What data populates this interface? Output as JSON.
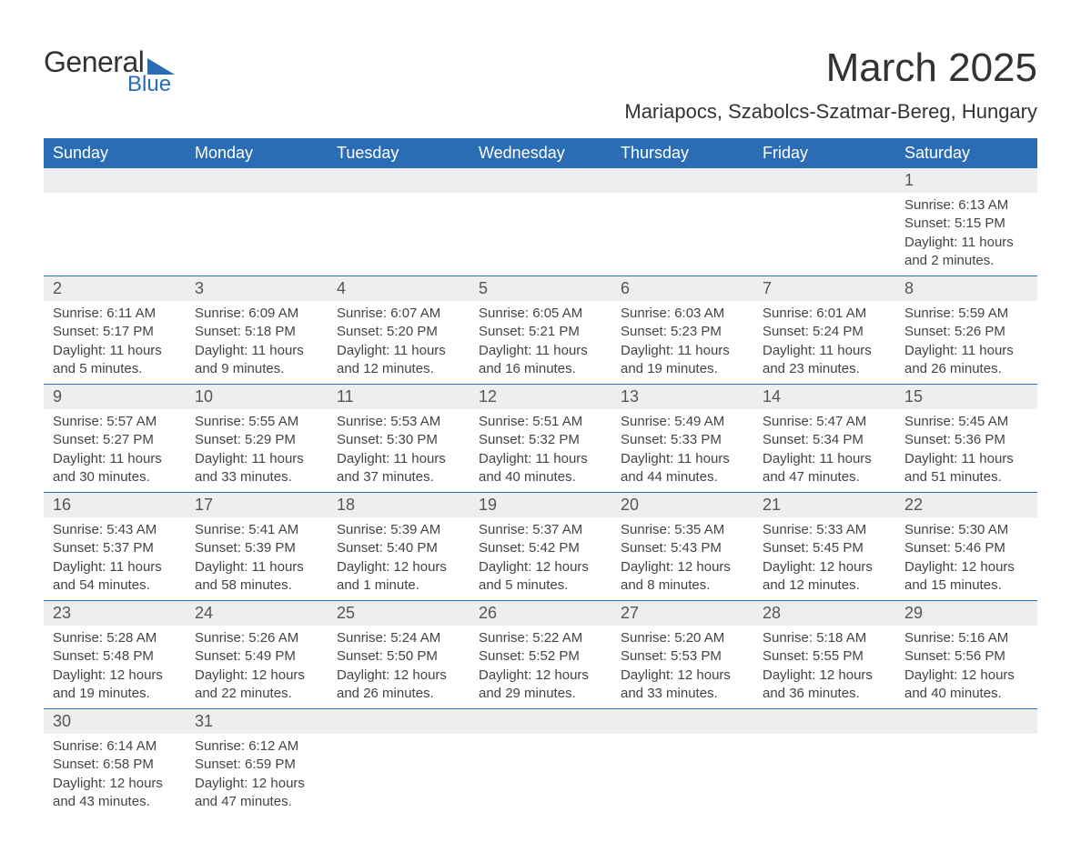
{
  "brand": {
    "general": "General",
    "blue": "Blue",
    "accent_color": "#2a6db5"
  },
  "header": {
    "title": "March 2025",
    "location": "Mariapocs, Szabolcs-Szatmar-Bereg, Hungary"
  },
  "calendar": {
    "day_labels": [
      "Sunday",
      "Monday",
      "Tuesday",
      "Wednesday",
      "Thursday",
      "Friday",
      "Saturday"
    ],
    "header_bg": "#2a6db5",
    "header_fg": "#ffffff",
    "daynum_bg": "#eceeef",
    "row_border": "#2a6db5",
    "text_color": "#444444",
    "weeks": [
      [
        {
          "empty": true
        },
        {
          "empty": true
        },
        {
          "empty": true
        },
        {
          "empty": true
        },
        {
          "empty": true
        },
        {
          "empty": true
        },
        {
          "n": "1",
          "sunrise": "Sunrise: 6:13 AM",
          "sunset": "Sunset: 5:15 PM",
          "dl1": "Daylight: 11 hours",
          "dl2": "and 2 minutes."
        }
      ],
      [
        {
          "n": "2",
          "sunrise": "Sunrise: 6:11 AM",
          "sunset": "Sunset: 5:17 PM",
          "dl1": "Daylight: 11 hours",
          "dl2": "and 5 minutes."
        },
        {
          "n": "3",
          "sunrise": "Sunrise: 6:09 AM",
          "sunset": "Sunset: 5:18 PM",
          "dl1": "Daylight: 11 hours",
          "dl2": "and 9 minutes."
        },
        {
          "n": "4",
          "sunrise": "Sunrise: 6:07 AM",
          "sunset": "Sunset: 5:20 PM",
          "dl1": "Daylight: 11 hours",
          "dl2": "and 12 minutes."
        },
        {
          "n": "5",
          "sunrise": "Sunrise: 6:05 AM",
          "sunset": "Sunset: 5:21 PM",
          "dl1": "Daylight: 11 hours",
          "dl2": "and 16 minutes."
        },
        {
          "n": "6",
          "sunrise": "Sunrise: 6:03 AM",
          "sunset": "Sunset: 5:23 PM",
          "dl1": "Daylight: 11 hours",
          "dl2": "and 19 minutes."
        },
        {
          "n": "7",
          "sunrise": "Sunrise: 6:01 AM",
          "sunset": "Sunset: 5:24 PM",
          "dl1": "Daylight: 11 hours",
          "dl2": "and 23 minutes."
        },
        {
          "n": "8",
          "sunrise": "Sunrise: 5:59 AM",
          "sunset": "Sunset: 5:26 PM",
          "dl1": "Daylight: 11 hours",
          "dl2": "and 26 minutes."
        }
      ],
      [
        {
          "n": "9",
          "sunrise": "Sunrise: 5:57 AM",
          "sunset": "Sunset: 5:27 PM",
          "dl1": "Daylight: 11 hours",
          "dl2": "and 30 minutes."
        },
        {
          "n": "10",
          "sunrise": "Sunrise: 5:55 AM",
          "sunset": "Sunset: 5:29 PM",
          "dl1": "Daylight: 11 hours",
          "dl2": "and 33 minutes."
        },
        {
          "n": "11",
          "sunrise": "Sunrise: 5:53 AM",
          "sunset": "Sunset: 5:30 PM",
          "dl1": "Daylight: 11 hours",
          "dl2": "and 37 minutes."
        },
        {
          "n": "12",
          "sunrise": "Sunrise: 5:51 AM",
          "sunset": "Sunset: 5:32 PM",
          "dl1": "Daylight: 11 hours",
          "dl2": "and 40 minutes."
        },
        {
          "n": "13",
          "sunrise": "Sunrise: 5:49 AM",
          "sunset": "Sunset: 5:33 PM",
          "dl1": "Daylight: 11 hours",
          "dl2": "and 44 minutes."
        },
        {
          "n": "14",
          "sunrise": "Sunrise: 5:47 AM",
          "sunset": "Sunset: 5:34 PM",
          "dl1": "Daylight: 11 hours",
          "dl2": "and 47 minutes."
        },
        {
          "n": "15",
          "sunrise": "Sunrise: 5:45 AM",
          "sunset": "Sunset: 5:36 PM",
          "dl1": "Daylight: 11 hours",
          "dl2": "and 51 minutes."
        }
      ],
      [
        {
          "n": "16",
          "sunrise": "Sunrise: 5:43 AM",
          "sunset": "Sunset: 5:37 PM",
          "dl1": "Daylight: 11 hours",
          "dl2": "and 54 minutes."
        },
        {
          "n": "17",
          "sunrise": "Sunrise: 5:41 AM",
          "sunset": "Sunset: 5:39 PM",
          "dl1": "Daylight: 11 hours",
          "dl2": "and 58 minutes."
        },
        {
          "n": "18",
          "sunrise": "Sunrise: 5:39 AM",
          "sunset": "Sunset: 5:40 PM",
          "dl1": "Daylight: 12 hours",
          "dl2": "and 1 minute."
        },
        {
          "n": "19",
          "sunrise": "Sunrise: 5:37 AM",
          "sunset": "Sunset: 5:42 PM",
          "dl1": "Daylight: 12 hours",
          "dl2": "and 5 minutes."
        },
        {
          "n": "20",
          "sunrise": "Sunrise: 5:35 AM",
          "sunset": "Sunset: 5:43 PM",
          "dl1": "Daylight: 12 hours",
          "dl2": "and 8 minutes."
        },
        {
          "n": "21",
          "sunrise": "Sunrise: 5:33 AM",
          "sunset": "Sunset: 5:45 PM",
          "dl1": "Daylight: 12 hours",
          "dl2": "and 12 minutes."
        },
        {
          "n": "22",
          "sunrise": "Sunrise: 5:30 AM",
          "sunset": "Sunset: 5:46 PM",
          "dl1": "Daylight: 12 hours",
          "dl2": "and 15 minutes."
        }
      ],
      [
        {
          "n": "23",
          "sunrise": "Sunrise: 5:28 AM",
          "sunset": "Sunset: 5:48 PM",
          "dl1": "Daylight: 12 hours",
          "dl2": "and 19 minutes."
        },
        {
          "n": "24",
          "sunrise": "Sunrise: 5:26 AM",
          "sunset": "Sunset: 5:49 PM",
          "dl1": "Daylight: 12 hours",
          "dl2": "and 22 minutes."
        },
        {
          "n": "25",
          "sunrise": "Sunrise: 5:24 AM",
          "sunset": "Sunset: 5:50 PM",
          "dl1": "Daylight: 12 hours",
          "dl2": "and 26 minutes."
        },
        {
          "n": "26",
          "sunrise": "Sunrise: 5:22 AM",
          "sunset": "Sunset: 5:52 PM",
          "dl1": "Daylight: 12 hours",
          "dl2": "and 29 minutes."
        },
        {
          "n": "27",
          "sunrise": "Sunrise: 5:20 AM",
          "sunset": "Sunset: 5:53 PM",
          "dl1": "Daylight: 12 hours",
          "dl2": "and 33 minutes."
        },
        {
          "n": "28",
          "sunrise": "Sunrise: 5:18 AM",
          "sunset": "Sunset: 5:55 PM",
          "dl1": "Daylight: 12 hours",
          "dl2": "and 36 minutes."
        },
        {
          "n": "29",
          "sunrise": "Sunrise: 5:16 AM",
          "sunset": "Sunset: 5:56 PM",
          "dl1": "Daylight: 12 hours",
          "dl2": "and 40 minutes."
        }
      ],
      [
        {
          "n": "30",
          "sunrise": "Sunrise: 6:14 AM",
          "sunset": "Sunset: 6:58 PM",
          "dl1": "Daylight: 12 hours",
          "dl2": "and 43 minutes."
        },
        {
          "n": "31",
          "sunrise": "Sunrise: 6:12 AM",
          "sunset": "Sunset: 6:59 PM",
          "dl1": "Daylight: 12 hours",
          "dl2": "and 47 minutes."
        },
        {
          "empty": true
        },
        {
          "empty": true
        },
        {
          "empty": true
        },
        {
          "empty": true
        },
        {
          "empty": true
        }
      ]
    ]
  }
}
